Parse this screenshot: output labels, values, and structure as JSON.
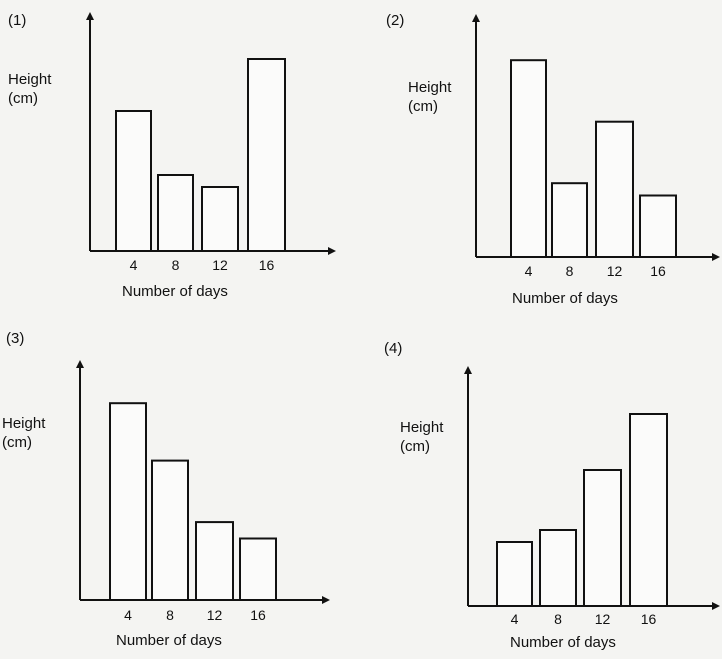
{
  "chart_data": [
    {
      "type": "bar",
      "label": "(1)",
      "categories": [
        "4",
        "8",
        "12",
        "16"
      ],
      "values": [
        3.5,
        1.9,
        1.6,
        4.8
      ],
      "ylabel": "Height\n(cm)",
      "xlabel": "Number of days",
      "ylim": [
        0,
        6
      ]
    },
    {
      "type": "bar",
      "label": "(2)",
      "categories": [
        "4",
        "8",
        "12",
        "16"
      ],
      "values": [
        4.8,
        1.8,
        3.3,
        1.5
      ],
      "ylabel": "Height\n(cm)",
      "xlabel": "Number of days",
      "ylim": [
        0,
        6
      ]
    },
    {
      "type": "bar",
      "label": "(3)",
      "categories": [
        "4",
        "8",
        "12",
        "16"
      ],
      "values": [
        4.8,
        3.4,
        1.9,
        1.5
      ],
      "ylabel": "Height\n(cm)",
      "xlabel": "Number of days",
      "ylim": [
        0,
        6
      ]
    },
    {
      "type": "bar",
      "label": "(4)",
      "categories": [
        "4",
        "8",
        "12",
        "16"
      ],
      "values": [
        1.6,
        1.9,
        3.4,
        4.8
      ],
      "ylabel": "Height\n(cm)",
      "xlabel": "Number of days",
      "ylim": [
        0,
        6
      ]
    }
  ]
}
